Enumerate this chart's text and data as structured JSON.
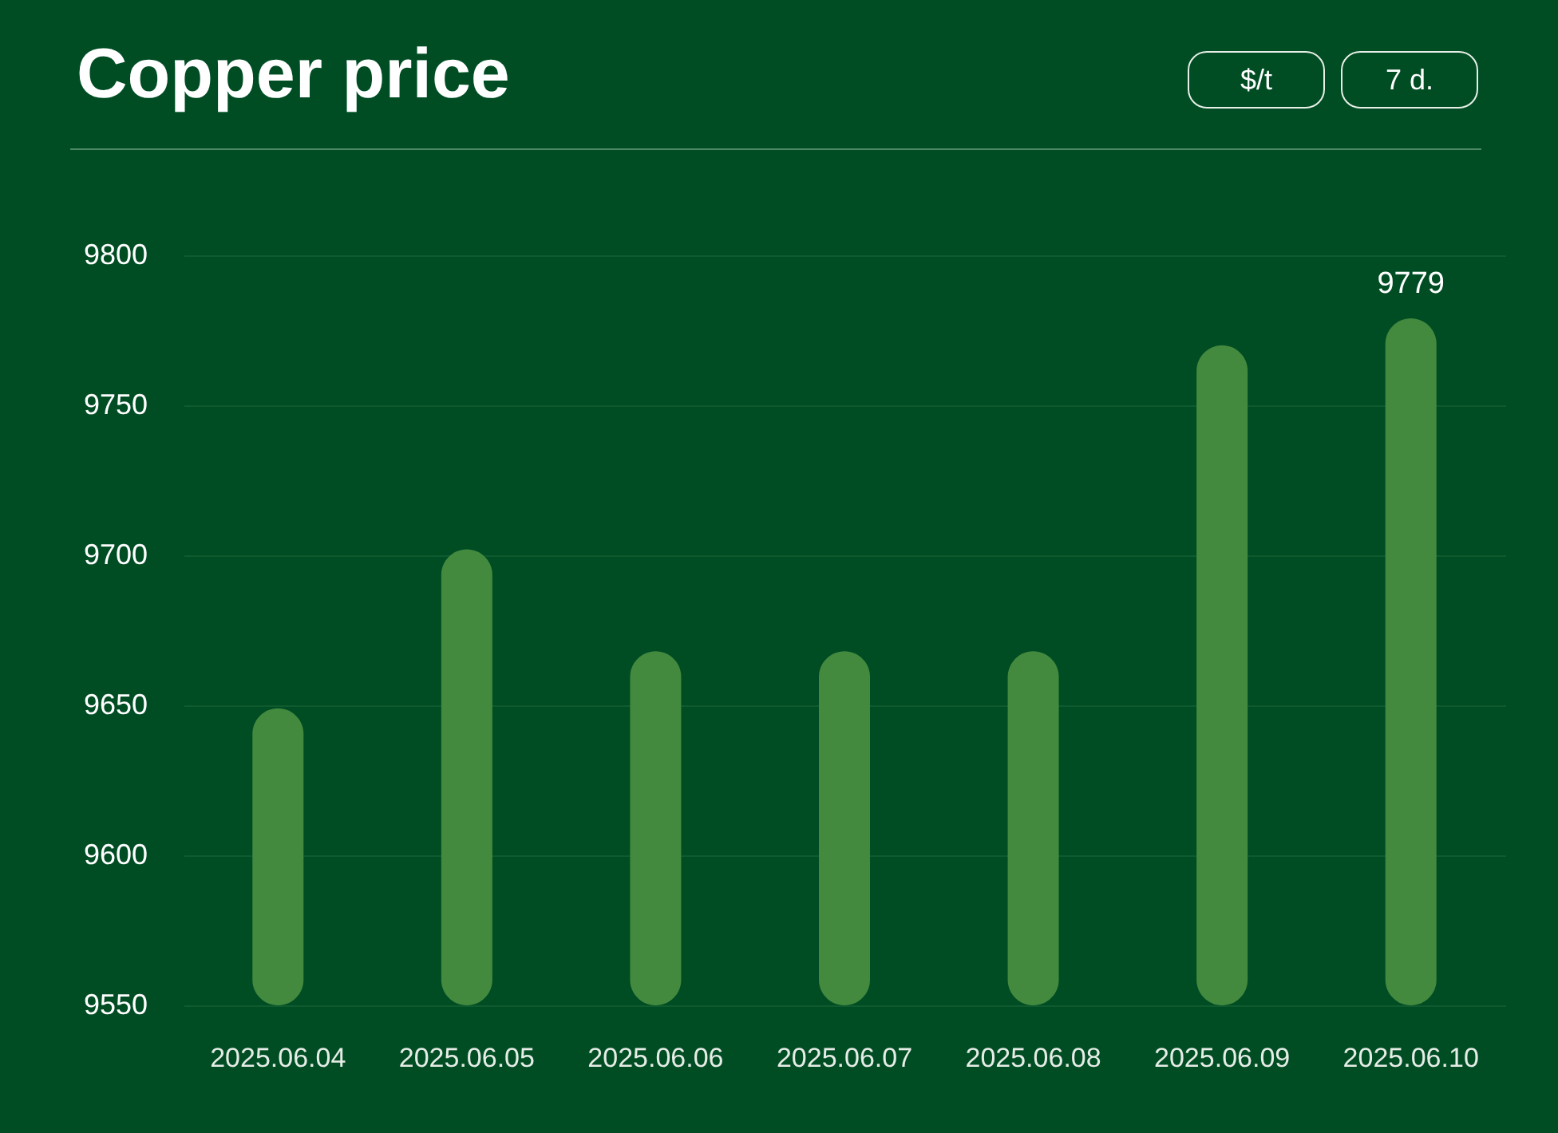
{
  "chart_data": {
    "type": "bar",
    "title": "Copper price",
    "annotations": [
      "$/t",
      "7 d."
    ],
    "categories": [
      "2025.06.04",
      "2025.06.05",
      "2025.06.06",
      "2025.06.07",
      "2025.06.08",
      "2025.06.09",
      "2025.06.10"
    ],
    "values": [
      9649,
      9702,
      9668,
      9668,
      9668,
      9770,
      9779
    ],
    "value_labels": [
      null,
      null,
      null,
      null,
      null,
      null,
      "9779"
    ],
    "color": "#438a3f",
    "ylim": [
      9550,
      9800
    ],
    "yticks": [
      9550,
      9600,
      9650,
      9700,
      9750,
      9800
    ],
    "grid": "y"
  }
}
